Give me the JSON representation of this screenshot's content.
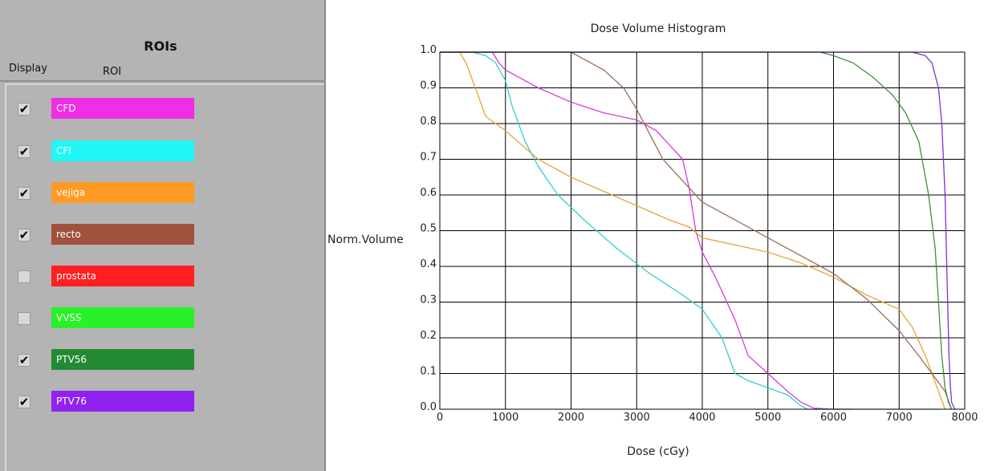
{
  "roi_panel": {
    "title": "ROIs",
    "col_display": "Display",
    "col_roi": "ROI",
    "items": [
      {
        "label": "CFD",
        "color": "#ef2ee5",
        "checked": true
      },
      {
        "label": "CFI",
        "color": "#22f5f5",
        "checked": true
      },
      {
        "label": "vejiga",
        "color": "#ff9a22",
        "checked": true
      },
      {
        "label": "recto",
        "color": "#a0523c",
        "checked": true
      },
      {
        "label": "prostata",
        "color": "#ff1f1f",
        "checked": false
      },
      {
        "label": "VVSS",
        "color": "#27f227",
        "checked": false
      },
      {
        "label": "PTV56",
        "color": "#238a33",
        "checked": true
      },
      {
        "label": "PTV76",
        "color": "#8f22ef",
        "checked": true
      }
    ]
  },
  "chart_data": {
    "type": "line",
    "title": "Dose Volume Histogram",
    "xlabel": "Dose (cGy)",
    "ylabel": "Norm.Volume",
    "xlim": [
      0,
      8000
    ],
    "ylim": [
      0,
      1.0
    ],
    "x_ticks": [
      "0",
      "1000",
      "2000",
      "3000",
      "4000",
      "5000",
      "6000",
      "7000",
      "8000"
    ],
    "y_ticks": [
      "0.0",
      "0.1",
      "0.2",
      "0.3",
      "0.4",
      "0.5",
      "0.6",
      "0.7",
      "0.8",
      "0.9",
      "1.0"
    ],
    "grid": true,
    "series": [
      {
        "name": "CFD",
        "color": "#d83ad8",
        "x": [
          800,
          900,
          1000,
          1200,
          1500,
          2000,
          2500,
          3000,
          3300,
          3500,
          3700,
          3800,
          3850,
          3900,
          3950,
          4000,
          4200,
          4500,
          4700,
          5000,
          5300,
          5500,
          5700,
          6000,
          6300
        ],
        "y": [
          1.0,
          0.97,
          0.95,
          0.93,
          0.9,
          0.86,
          0.83,
          0.81,
          0.78,
          0.74,
          0.7,
          0.62,
          0.56,
          0.5,
          0.47,
          0.44,
          0.37,
          0.25,
          0.15,
          0.1,
          0.05,
          0.02,
          0.003,
          0.0,
          0.0
        ]
      },
      {
        "name": "CFI",
        "color": "#2ecece",
        "x": [
          500,
          700,
          850,
          1000,
          1100,
          1300,
          1500,
          1800,
          2200,
          2700,
          3200,
          3700,
          4000,
          4300,
          4400,
          4500,
          4700,
          5000,
          5300,
          5500,
          5600,
          6000,
          7000,
          7600
        ],
        "y": [
          1.0,
          0.99,
          0.97,
          0.92,
          0.85,
          0.75,
          0.68,
          0.6,
          0.53,
          0.45,
          0.38,
          0.32,
          0.28,
          0.2,
          0.15,
          0.1,
          0.08,
          0.06,
          0.04,
          0.01,
          0.0,
          0.0,
          0.0,
          0.0
        ]
      },
      {
        "name": "vejiga",
        "color": "#e8a23a",
        "x": [
          300,
          400,
          500,
          600,
          700,
          1000,
          1500,
          2000,
          2500,
          3000,
          3500,
          3800,
          4000,
          4500,
          5000,
          5500,
          6000,
          6500,
          7000,
          7200,
          7400,
          7500,
          7600,
          7700
        ],
        "y": [
          1.0,
          0.97,
          0.92,
          0.87,
          0.82,
          0.78,
          0.7,
          0.65,
          0.61,
          0.57,
          0.53,
          0.51,
          0.48,
          0.46,
          0.44,
          0.41,
          0.37,
          0.32,
          0.28,
          0.23,
          0.15,
          0.1,
          0.05,
          0.0
        ]
      },
      {
        "name": "recto",
        "color": "#9a6e56",
        "x": [
          2000,
          2200,
          2500,
          2800,
          3000,
          3200,
          3400,
          3600,
          3800,
          4000,
          4500,
          5000,
          5500,
          6000,
          6500,
          7000,
          7300,
          7500,
          7700,
          7800
        ],
        "y": [
          1.0,
          0.98,
          0.95,
          0.9,
          0.84,
          0.77,
          0.7,
          0.66,
          0.62,
          0.58,
          0.53,
          0.48,
          0.43,
          0.38,
          0.31,
          0.22,
          0.15,
          0.1,
          0.05,
          0.0
        ]
      },
      {
        "name": "PTV56",
        "color": "#3b8f3b",
        "x": [
          5800,
          6000,
          6300,
          6600,
          6900,
          7100,
          7300,
          7450,
          7550,
          7600,
          7650,
          7700,
          7750,
          7800
        ],
        "y": [
          1.0,
          0.99,
          0.97,
          0.93,
          0.88,
          0.83,
          0.75,
          0.6,
          0.45,
          0.3,
          0.15,
          0.06,
          0.02,
          0.0
        ]
      },
      {
        "name": "PTV76",
        "color": "#7c30d6",
        "x": [
          7000,
          7200,
          7400,
          7500,
          7600,
          7650,
          7700,
          7720,
          7740,
          7760,
          7780,
          7800,
          7850
        ],
        "y": [
          1.0,
          1.0,
          0.99,
          0.97,
          0.9,
          0.8,
          0.6,
          0.45,
          0.3,
          0.15,
          0.07,
          0.02,
          0.0
        ]
      }
    ]
  }
}
